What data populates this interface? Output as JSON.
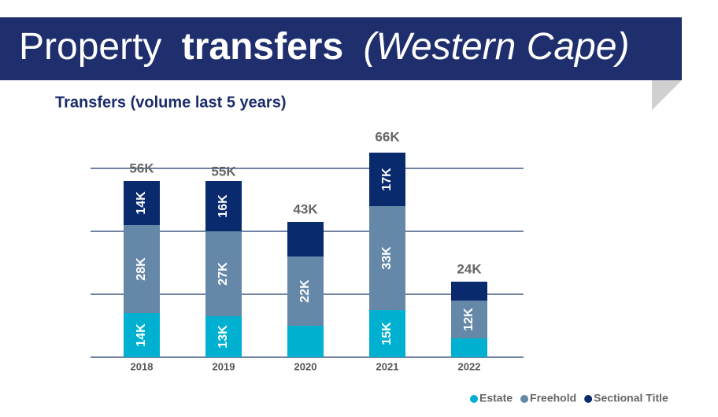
{
  "title_parts": [
    "Property",
    "transfers",
    "(Western Cape)"
  ],
  "chart_data": {
    "type": "stacked-bar",
    "title": "Transfers (volume last 5 years)",
    "categories": [
      "2018",
      "2019",
      "2020",
      "2021",
      "2022"
    ],
    "series": [
      {
        "name": "Estate",
        "color": "#00b0d0",
        "values": [
          14,
          13,
          10,
          15,
          6
        ],
        "value_labels": [
          "14K",
          "13K",
          null,
          "15K",
          null
        ]
      },
      {
        "name": "Freehold",
        "color": "#6688a8",
        "values": [
          28,
          27,
          22,
          33,
          12
        ],
        "value_labels": [
          "28K",
          "27K",
          "22K",
          "33K",
          "12K"
        ]
      },
      {
        "name": "Sectional Title",
        "color": "#0a2a6e",
        "values": [
          14,
          16,
          11,
          17,
          6
        ],
        "value_labels": [
          "14K",
          "16K",
          null,
          "17K",
          null
        ]
      }
    ],
    "totals": {
      "values": [
        56,
        55,
        43,
        66,
        24
      ],
      "value_labels": [
        "56K",
        "55K",
        "43K",
        "66K",
        "24K"
      ]
    },
    "ylim": [
      0,
      60
    ],
    "yticks": [
      0,
      20,
      40,
      60
    ],
    "grid": true,
    "legend": "bottom-right"
  }
}
